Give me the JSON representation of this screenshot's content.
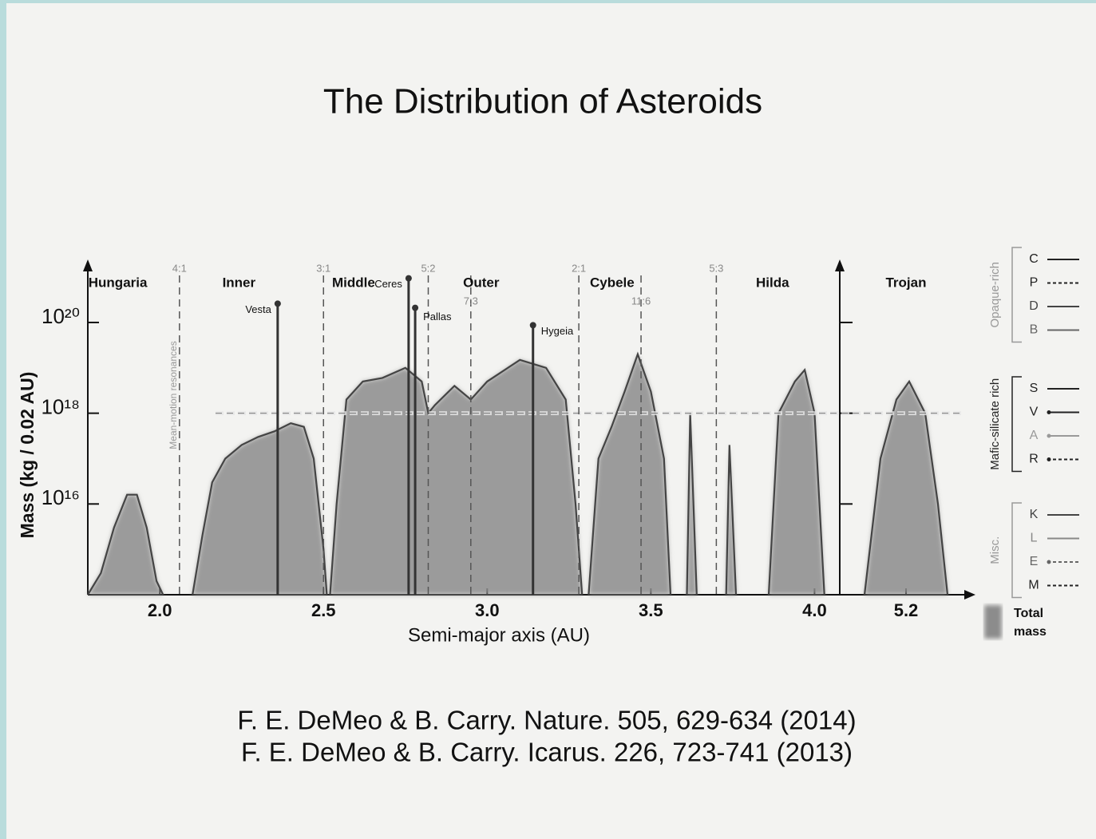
{
  "title": "The Distribution of Asteroids",
  "references": [
    "F. E. DeMeo & B. Carry. Nature. 505, 629-634 (2014)",
    "F. E. DeMeo & B. Carry. Icarus. 226, 723-741 (2013)"
  ],
  "chart_data": {
    "type": "area",
    "log_y": true,
    "x_label": "Semi-major axis (AU)",
    "y_label": "Mass (kg / 0.02 AU)",
    "xlim": [
      1.78,
      4.06
    ],
    "xticks": [
      {
        "value": 2,
        "label": "2.0"
      },
      2.5,
      {
        "value": 3,
        "label": "3.0"
      },
      3.5,
      {
        "value": 4,
        "label": "4.0"
      }
    ],
    "ylim": [
      100000000000000.0,
      2e+21
    ],
    "yticks": [
      {
        "value": 1e+16,
        "label": "10¹⁶"
      },
      {
        "value": 1e+18,
        "label": "10¹⁸"
      },
      {
        "value": 1e+20,
        "label": "10²⁰"
      }
    ],
    "series": [
      {
        "name": "Total mass",
        "color": "#8c8c8c",
        "x": [
          1.78,
          1.82,
          1.86,
          1.9,
          1.93,
          1.96,
          1.99,
          2.01,
          null,
          2.1,
          2.13,
          2.16,
          2.2,
          2.25,
          2.3,
          2.35,
          2.4,
          2.44,
          2.47,
          2.5,
          2.51,
          null,
          2.52,
          2.54,
          2.57,
          2.62,
          2.68,
          2.75,
          2.8,
          2.82,
          2.84,
          2.9,
          2.95,
          3.0,
          3.1,
          3.18,
          3.24,
          3.27,
          3.29,
          null,
          3.31,
          3.34,
          3.38,
          3.42,
          3.46,
          3.5,
          3.54,
          3.56,
          null,
          3.61,
          3.62,
          3.64,
          null,
          3.73,
          3.74,
          3.76,
          null,
          3.86,
          3.89,
          3.94,
          3.97,
          4.0,
          4.03
        ],
        "values": [
          100000000000000.0,
          300000000000000.0,
          3000000000000000.0,
          1.6e+16,
          1.6e+16,
          3000000000000000.0,
          200000000000000.0,
          100000000000000.0,
          null,
          100000000000000.0,
          2000000000000000.0,
          3e+16,
          1e+17,
          2e+17,
          3e+17,
          4e+17,
          6e+17,
          5e+17,
          1e+17,
          1000000000000000.0,
          100000000000000.0,
          null,
          100000000000000.0,
          1e+16,
          2e+18,
          5e+18,
          6e+18,
          1e+19,
          5e+18,
          1e+18,
          1.5e+18,
          4e+18,
          2e+18,
          5e+18,
          1.5e+19,
          1e+19,
          2e+18,
          1e+16,
          100000000000000.0,
          null,
          100000000000000.0,
          1e+17,
          5e+17,
          3e+18,
          2e+19,
          3e+18,
          1e+17,
          100000000000000.0,
          null,
          100000000000000.0,
          1e+18,
          100000000000000.0,
          null,
          100000000000000.0,
          2e+17,
          100000000000000.0,
          null,
          100000000000000.0,
          1e+18,
          5e+18,
          9e+18,
          1e+18,
          100000000000000.0
        ]
      }
    ],
    "regions": [
      {
        "name": "Hungaria",
        "x": 1.94
      },
      {
        "name": "Inner",
        "x": 2.31
      },
      {
        "name": "Middle",
        "x": 2.66
      },
      {
        "name": "Outer",
        "x": 3.05
      },
      {
        "name": "Cybele",
        "x": 3.45
      },
      {
        "name": "Hilda",
        "x": 3.94
      }
    ],
    "resonances_label": "Mean-motion resonances",
    "resonances": [
      {
        "label": "4:1",
        "x": 2.06
      },
      {
        "label": "3:1",
        "x": 2.5
      },
      {
        "label": "5:2",
        "x": 2.82
      },
      {
        "label": "7:3",
        "x": 2.95
      },
      {
        "label": "2:1",
        "x": 3.28
      },
      {
        "label": "11:6",
        "x": 3.47
      },
      {
        "label": "5:3",
        "x": 3.7
      }
    ],
    "asteroids": [
      {
        "name": "Vesta",
        "x": 2.36,
        "mass": 2.6e+20
      },
      {
        "name": "Ceres",
        "x": 2.76,
        "mass": 9.4e+20
      },
      {
        "name": "Pallas",
        "x": 2.78,
        "mass": 2.1e+20
      },
      {
        "name": "Hygeia",
        "x": 3.14,
        "mass": 8.7e+19
      }
    ],
    "trojan": {
      "title": "Trojan",
      "xlim": [
        5.0,
        5.4
      ],
      "xticks": [
        5.2
      ],
      "x": [
        5.07,
        5.12,
        5.17,
        5.21,
        5.26,
        5.3,
        5.33
      ],
      "values": [
        100000000000000.0,
        1e+17,
        2e+18,
        5e+18,
        1e+18,
        1e+16,
        100000000000000.0
      ]
    },
    "legend": [
      {
        "group": "Opaque-rich",
        "color": "#999999",
        "items": [
          {
            "name": "C",
            "style": "solid",
            "color": "#222222"
          },
          {
            "name": "P",
            "style": "dashed",
            "color": "#222222"
          },
          {
            "name": "D",
            "style": "solid",
            "color": "#444444"
          },
          {
            "name": "B",
            "style": "solid",
            "color": "#666666"
          }
        ]
      },
      {
        "group": "Mafic-silicate rich",
        "color": "#222222",
        "items": [
          {
            "name": "S",
            "style": "solid",
            "color": "#222222"
          },
          {
            "name": "V",
            "style": "dot-solid",
            "color": "#222222"
          },
          {
            "name": "A",
            "style": "dot-solid",
            "color": "#999999"
          },
          {
            "name": "R",
            "style": "dot-dashed",
            "color": "#222222"
          }
        ]
      },
      {
        "group": "Misc.",
        "color": "#999999",
        "items": [
          {
            "name": "K",
            "style": "solid",
            "color": "#444444"
          },
          {
            "name": "L",
            "style": "solid",
            "color": "#888888"
          },
          {
            "name": "E",
            "style": "dot-dashed",
            "color": "#666666"
          },
          {
            "name": "M",
            "style": "dashed",
            "color": "#222222"
          }
        ]
      }
    ]
  }
}
